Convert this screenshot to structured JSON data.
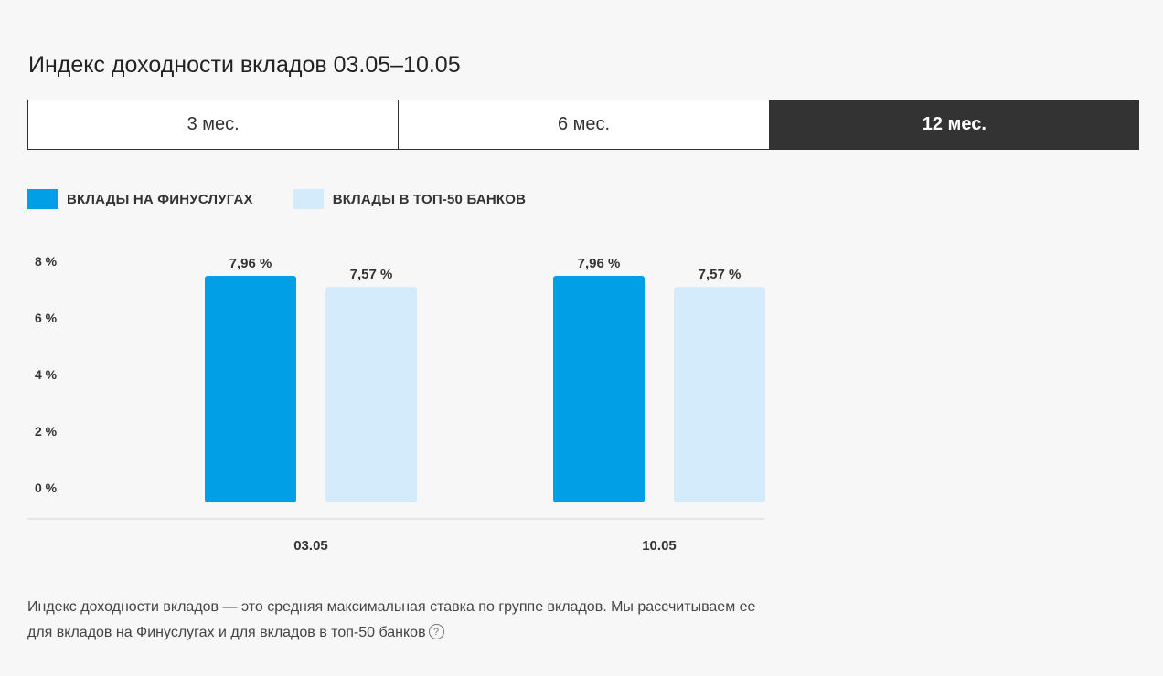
{
  "title": "Индекс доходности вкладов 03.05–10.05",
  "tabs": [
    {
      "label": "3 мес.",
      "active": false
    },
    {
      "label": "6 мес.",
      "active": false
    },
    {
      "label": "12 мес.",
      "active": true
    }
  ],
  "colors": {
    "primary": "#009fe6",
    "secondary": "#d4ebfc",
    "tab_active_bg": "#333333"
  },
  "note": {
    "text": "Индекс доходности вкладов — это средняя максимальная ставка по группе вкладов. Мы рассчитываем ее для вкладов на Финуслугах и для вкладов в топ-50 банков",
    "help_icon": "?"
  },
  "chart_data": {
    "type": "bar",
    "categories": [
      "03.05",
      "10.05"
    ],
    "series": [
      {
        "name": "ВКЛАДЫ НА ФИНУСЛУГАХ",
        "values": [
          7.96,
          7.96
        ],
        "labels": [
          "7,96 %",
          "7,96 %"
        ],
        "color": "#009fe6"
      },
      {
        "name": "ВКЛАДЫ В ТОП-50 БАНКОВ",
        "values": [
          7.57,
          7.57
        ],
        "labels": [
          "7,57 %",
          "7,57 %"
        ],
        "color": "#d4ebfc"
      }
    ],
    "y_ticks": [
      {
        "value": 8,
        "label": "8 %"
      },
      {
        "value": 6,
        "label": "6 %"
      },
      {
        "value": 4,
        "label": "4 %"
      },
      {
        "value": 2,
        "label": "2 %"
      },
      {
        "value": 0,
        "label": "0 %"
      }
    ],
    "ylim": [
      0,
      8
    ],
    "grid": false,
    "legend": "top-left"
  }
}
